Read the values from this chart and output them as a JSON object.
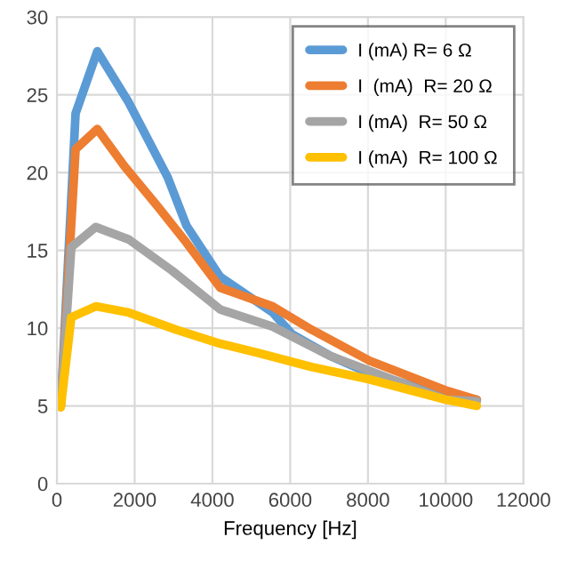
{
  "chart_data": {
    "type": "line",
    "xlabel": "Frequency [Hz]",
    "xlim": [
      0,
      12000
    ],
    "xticks": [
      0,
      2000,
      4000,
      6000,
      8000,
      10000,
      12000
    ],
    "ylim": [
      0,
      30
    ],
    "yticks": [
      0,
      5,
      10,
      15,
      20,
      25,
      30
    ],
    "grid": true,
    "legend": "top right",
    "marker": "none",
    "line_style": "solid",
    "series": [
      {
        "name": "I (mA) R= 6 Ω",
        "color": "#5b9bd5",
        "x": [
          100,
          480,
          1040,
          1850,
          2850,
          3330,
          4200,
          5550,
          6050,
          7040,
          8040,
          9000,
          10000,
          10800
        ],
        "values": [
          5,
          23.8,
          27.8,
          24.5,
          19.7,
          16.6,
          13.3,
          11.0,
          9.6,
          8.2,
          7.1,
          6.4,
          5.6,
          5.4
        ]
      },
      {
        "name": "I  (mA)  R= 20 Ω",
        "color": "#ed7d31",
        "x": [
          100,
          480,
          1040,
          1740,
          2600,
          3330,
          4200,
          5550,
          6550,
          8040,
          10000,
          10800
        ],
        "values": [
          5,
          21.5,
          22.8,
          20.4,
          17.8,
          15.5,
          12.6,
          11.4,
          9.9,
          7.9,
          6.0,
          5.4
        ]
      },
      {
        "name": "I (mA)  R= 50 Ω",
        "color": "#a5a5a5",
        "x": [
          100,
          370,
          1000,
          1850,
          2960,
          4200,
          5550,
          7040,
          10000,
          10800
        ],
        "values": [
          5,
          15.2,
          16.5,
          15.7,
          13.7,
          11.2,
          10.1,
          8.2,
          5.4,
          5.3
        ]
      },
      {
        "name": "I (mA)  R= 100 Ω",
        "color": "#ffc000",
        "x": [
          100,
          370,
          1000,
          1850,
          3070,
          4200,
          5180,
          6550,
          8040,
          10000,
          10800
        ],
        "values": [
          4.9,
          10.7,
          11.4,
          11.0,
          9.9,
          9.0,
          8.4,
          7.5,
          6.7,
          5.4,
          5.0
        ]
      }
    ]
  }
}
